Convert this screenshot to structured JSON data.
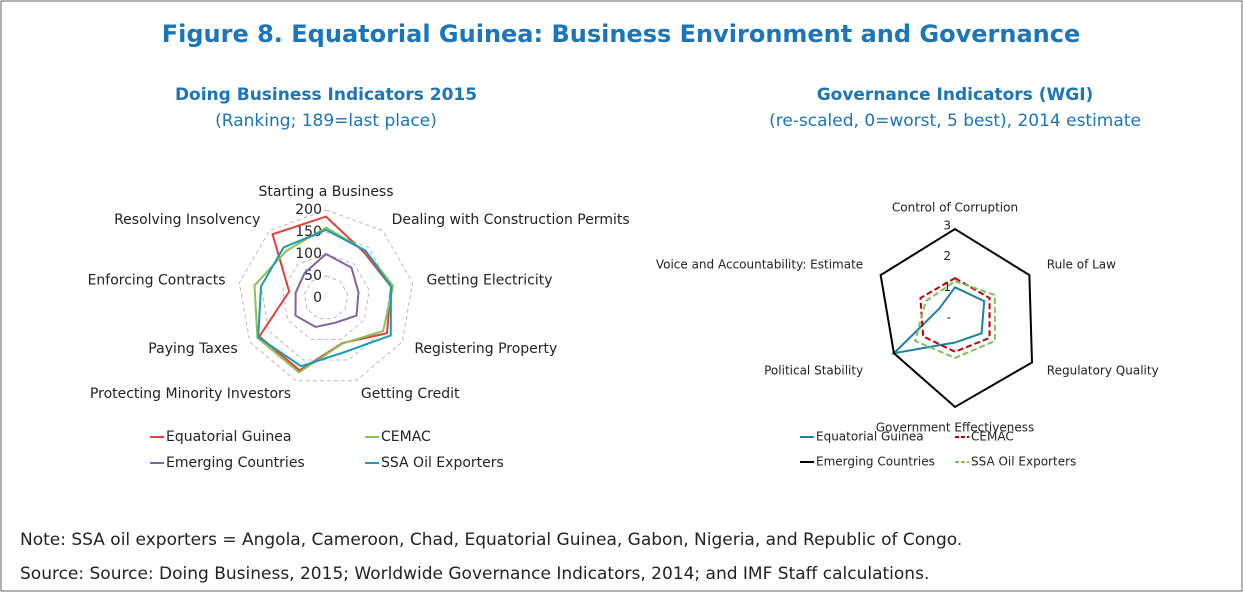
{
  "title": "Figure 8. Equatorial Guinea: Business Environment and Governance",
  "note": "Note: SSA oil exporters = Angola, Cameroon, Chad, Equatorial Guinea, Gabon, Nigeria, and Republic of Congo.",
  "source": "Source: Source: Doing Business, 2015; Worldwide Governance Indicators, 2014; and IMF Staff calculations.",
  "chart_data": [
    {
      "type": "radar",
      "title": "Doing Business Indicators 2015",
      "subtitle": "(Ranking; 189=last place)",
      "categories": [
        "Starting a Business",
        "Dealing with Construction Permits",
        "Getting Electricity",
        "Registering Property",
        "Getting Credit",
        "Protecting Minority Investors",
        "Paying Taxes",
        "Enforcing Contracts",
        "Resolving Insolvency"
      ],
      "ylim": [
        0,
        200
      ],
      "yticks": [
        0,
        50,
        100,
        150,
        200
      ],
      "grid": true,
      "series": [
        {
          "name": "Equatorial Guinea",
          "color": "#e0403a",
          "values": [
            185,
            135,
            150,
            160,
            109,
            175,
            175,
            85,
            189
          ]
        },
        {
          "name": "CEMAC",
          "color": "#8cc152",
          "values": [
            160,
            140,
            155,
            150,
            110,
            180,
            180,
            165,
            140
          ]
        },
        {
          "name": "Emerging Countries",
          "color": "#8064a2",
          "values": [
            100,
            90,
            75,
            80,
            60,
            70,
            80,
            70,
            75
          ]
        },
        {
          "name": "SSA Oil Exporters",
          "color": "#1b9bb5",
          "values": [
            155,
            140,
            150,
            170,
            130,
            165,
            178,
            150,
            150
          ]
        }
      ]
    },
    {
      "type": "radar",
      "title": "Governance Indicators (WGI)",
      "subtitle": "(re-scaled, 0=worst, 5 best), 2014 estimate",
      "categories": [
        "Control of Corruption",
        "Rule of Law",
        "Regulatory Quality",
        "Government Effectiveness",
        "Political Stability",
        "Voice and Accountability: Estimate"
      ],
      "ylim": [
        0,
        3
      ],
      "yticks": [
        {
          "value": 0,
          "label": "-"
        },
        1,
        2,
        3
      ],
      "grid": false,
      "series": [
        {
          "name": "Equatorial Guinea",
          "color": "#1f80a8",
          "dash": false,
          "values": [
            1.0,
            1.1,
            1.0,
            0.8,
            2.3,
            0.6
          ]
        },
        {
          "name": "CEMAC",
          "color": "#c00000",
          "dash": true,
          "values": [
            1.3,
            1.3,
            1.3,
            1.1,
            1.2,
            1.3
          ]
        },
        {
          "name": "Emerging Countries",
          "color": "#000000",
          "dash": false,
          "values": [
            2.9,
            2.8,
            2.9,
            2.9,
            2.3,
            2.8
          ]
        },
        {
          "name": "SSA Oil Exporters",
          "color": "#7fbf5f",
          "dash": true,
          "values": [
            1.2,
            1.5,
            1.5,
            1.3,
            1.5,
            1.1
          ]
        }
      ]
    }
  ]
}
